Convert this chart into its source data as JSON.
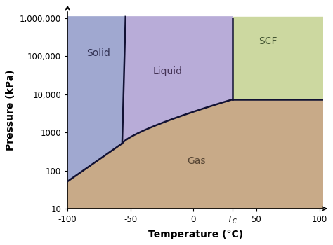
{
  "xlabel": "Temperature (°C)",
  "ylabel": "Pressure (kPa)",
  "xlim": [
    -100,
    103
  ],
  "ymin": 10,
  "ymax": 1800000,
  "ytop": 1000000,
  "color_solid": "#a0a8d0",
  "color_liquid": "#b8acd8",
  "color_gas": "#c8aa88",
  "color_scf": "#ccd8a0",
  "color_line": "#111133",
  "label_solid": "Solid",
  "label_liquid": "Liquid",
  "label_gas": "Gas",
  "label_scf": "SCF",
  "Tc": 31,
  "Pc": 7380,
  "triple_T": -56.6,
  "triple_P": 518,
  "background": "#ffffff",
  "label_fontsize": 10,
  "axis_label_fontsize": 10
}
